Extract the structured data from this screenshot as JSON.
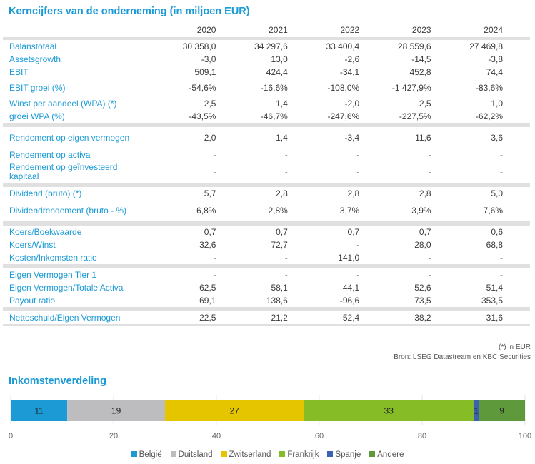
{
  "title": "Kerncijfers van de onderneming (in miljoen EUR)",
  "years": [
    "2020",
    "2021",
    "2022",
    "2023",
    "2024"
  ],
  "groups": [
    [
      {
        "label": "Balanstotaal",
        "values": [
          "30 358,0",
          "34 297,6",
          "33 400,4",
          "28 559,6",
          "27 469,8"
        ]
      },
      {
        "label": "Assetsgrowth",
        "values": [
          "-3,0",
          "13,0",
          "-2,6",
          "-14,5",
          "-3,8"
        ]
      },
      {
        "label": "EBIT",
        "values": [
          "509,1",
          "424,4",
          "-34,1",
          "452,8",
          "74,4"
        ]
      },
      {
        "label": "EBIT groei (%)",
        "values": [
          "-54,6%",
          "-16,6%",
          "-108,0%",
          "-1 427,9%",
          "-83,6%"
        ]
      },
      {
        "label": "Winst per aandeel (WPA) (*)",
        "values": [
          "2,5",
          "1,4",
          "-2,0",
          "2,5",
          "1,0"
        ]
      },
      {
        "label": "groei WPA (%)",
        "values": [
          "-43,5%",
          "-46,7%",
          "-247,6%",
          "-227,5%",
          "-62,2%"
        ]
      }
    ],
    [
      {
        "label": "Rendement op eigen vermogen",
        "values": [
          "2,0",
          "1,4",
          "-3,4",
          "11,6",
          "3,6"
        ]
      },
      {
        "label": "Rendement op activa",
        "values": [
          "-",
          "-",
          "-",
          "-",
          "-"
        ]
      },
      {
        "label": "Rendement op geïnvesteerd kapitaal",
        "values": [
          "-",
          "-",
          "-",
          "-",
          "-"
        ]
      }
    ],
    [
      {
        "label": "Dividend (bruto) (*)",
        "values": [
          "5,7",
          "2,8",
          "2,8",
          "2,8",
          "5,0"
        ]
      },
      {
        "label": "Dividendrendement (bruto - %)",
        "values": [
          "6,8%",
          "2,8%",
          "3,7%",
          "3,9%",
          "7,6%"
        ]
      }
    ],
    [
      {
        "label": "Koers/Boekwaarde",
        "values": [
          "0,7",
          "0,7",
          "0,7",
          "0,7",
          "0,6"
        ]
      },
      {
        "label": "Koers/Winst",
        "values": [
          "32,6",
          "72,7",
          "-",
          "28,0",
          "68,8"
        ]
      },
      {
        "label": "Kosten/Inkomsten ratio",
        "values": [
          "-",
          "-",
          "141,0",
          "-",
          "-"
        ]
      }
    ],
    [
      {
        "label": "Eigen Vermogen Tier 1",
        "values": [
          "-",
          "-",
          "-",
          "-",
          "-"
        ]
      },
      {
        "label": "Eigen Vermogen/Totale Activa",
        "values": [
          "62,5",
          "58,1",
          "44,1",
          "52,6",
          "51,4"
        ]
      },
      {
        "label": "Payout ratio",
        "values": [
          "69,1",
          "138,6",
          "-96,6",
          "73,5",
          "353,5"
        ]
      }
    ],
    [
      {
        "label": "Nettoschuld/Eigen Vermogen",
        "values": [
          "22,5",
          "21,2",
          "52,4",
          "38,2",
          "31,6"
        ]
      }
    ]
  ],
  "footnote": "(*) in EUR",
  "source": "Bron: LSEG Datastream en KBC Securities",
  "chart_data": {
    "type": "bar",
    "orientation": "horizontal-stacked",
    "title": "Inkomstenverdeling",
    "categories": [
      ""
    ],
    "series": [
      {
        "name": "België",
        "values": [
          11
        ],
        "color": "#1b9ad6"
      },
      {
        "name": "Duitsland",
        "values": [
          19
        ],
        "color": "#bdbdbf"
      },
      {
        "name": "Zwitserland",
        "values": [
          27
        ],
        "color": "#e5c400"
      },
      {
        "name": "Frankrijk",
        "values": [
          33
        ],
        "color": "#86bc25"
      },
      {
        "name": "Spanje",
        "values": [
          1
        ],
        "color": "#3a62b0"
      },
      {
        "name": "Andere",
        "values": [
          9
        ],
        "color": "#5e9a3c"
      }
    ],
    "xlim": [
      0,
      100
    ],
    "xticks": [
      0,
      20,
      40,
      60,
      80,
      100
    ],
    "grid": true,
    "legend": "bottom"
  }
}
